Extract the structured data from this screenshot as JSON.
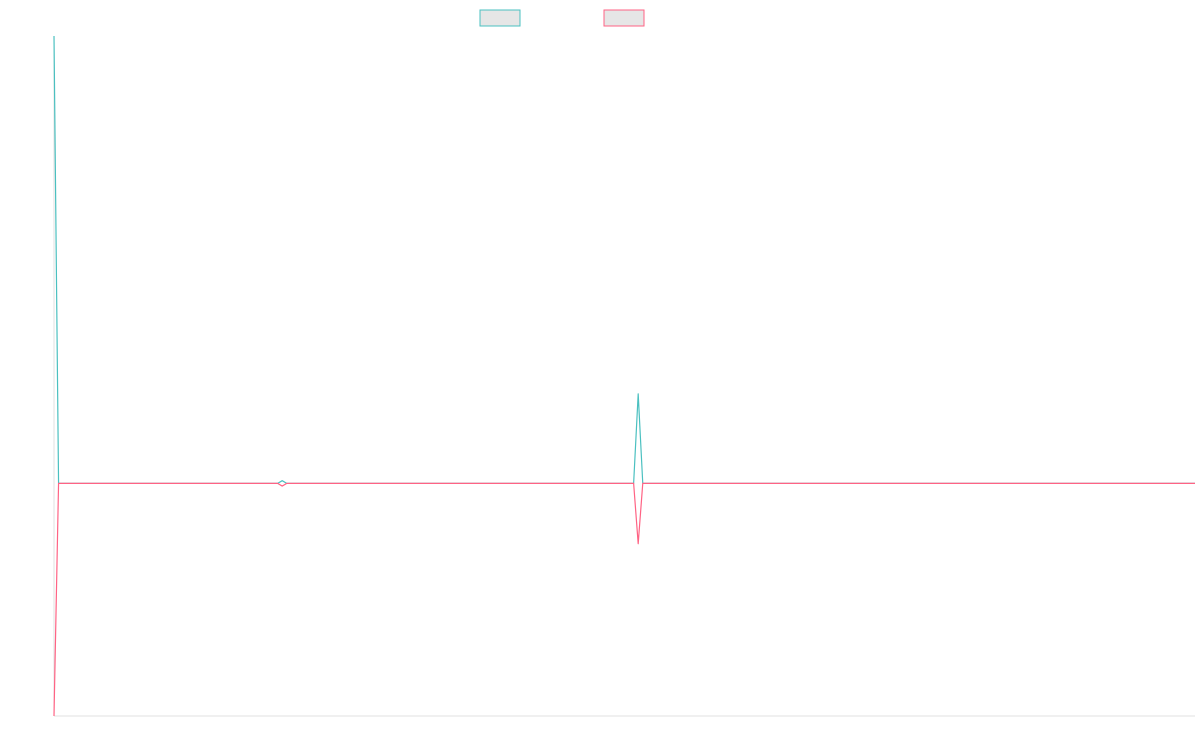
{
  "chart_data": {
    "type": "line",
    "title": "",
    "xlabel": "",
    "ylabel": "",
    "legend_placement": "top-center",
    "grid": false,
    "x": [
      0,
      1,
      2,
      3,
      4,
      5,
      6,
      7,
      8,
      9,
      10,
      11,
      12,
      13,
      14,
      15,
      16,
      17,
      18,
      19,
      20,
      21,
      22,
      23,
      24,
      25,
      26,
      27,
      28,
      29,
      30,
      31,
      32,
      33,
      34,
      35,
      36,
      37,
      38,
      39,
      40,
      41,
      42,
      43,
      44,
      45,
      46,
      47,
      48,
      49,
      50,
      51,
      52,
      53,
      54,
      55,
      56,
      57,
      58,
      59,
      60,
      61,
      62,
      63,
      64,
      65,
      66,
      67,
      68,
      69,
      70,
      71,
      72,
      73,
      74,
      75,
      76,
      77,
      78,
      79,
      80,
      81,
      82,
      83,
      84,
      85,
      86,
      87,
      88,
      89,
      90,
      91,
      92,
      93,
      94,
      95,
      96,
      97,
      98,
      99,
      100,
      101,
      102,
      103,
      104,
      105,
      106,
      107,
      108,
      109,
      110,
      111,
      112,
      113,
      114,
      115,
      116,
      117,
      118,
      119,
      120,
      121,
      122,
      123,
      124,
      125,
      126,
      127,
      128,
      129,
      130,
      131,
      132,
      133,
      134,
      135,
      136,
      137,
      138,
      139,
      140,
      141,
      142,
      143,
      144,
      145,
      146,
      147,
      148,
      149,
      150,
      151,
      152,
      153,
      154,
      155,
      156,
      157,
      158,
      159,
      160,
      161,
      162,
      163,
      164,
      165,
      166,
      167,
      168,
      169,
      170,
      171,
      172,
      173,
      174,
      175,
      176,
      177,
      178,
      179,
      180,
      181,
      182,
      183,
      184,
      185,
      186,
      187,
      188,
      189,
      190,
      191,
      192,
      193,
      194,
      195,
      196,
      197,
      198,
      199,
      200,
      201,
      202,
      203,
      204,
      205,
      206,
      207,
      208,
      209,
      210,
      211,
      212,
      213,
      214,
      215,
      216,
      217,
      218,
      219,
      220,
      221,
      222,
      223,
      224,
      225,
      226,
      227,
      228,
      229,
      230,
      231,
      232,
      233,
      234,
      235,
      236,
      237,
      238,
      239,
      240,
      241,
      242,
      243,
      244,
      245,
      246,
      247,
      248,
      249,
      250
    ],
    "series": [
      {
        "name": "",
        "color": "#4bc0c0",
        "legend_fill": "#e6e6e6",
        "baseline": 0,
        "spikes": [
          [
            0,
            100
          ],
          [
            1,
            0
          ],
          [
            50,
            0.6
          ],
          [
            128,
            20
          ]
        ]
      },
      {
        "name": "",
        "color": "#ff6384",
        "legend_fill": "#e6e6e6",
        "baseline": 0,
        "spikes": [
          [
            0,
            -52
          ],
          [
            1,
            0
          ],
          [
            50,
            -0.6
          ],
          [
            128,
            -13.5
          ]
        ]
      }
    ],
    "ylim": [
      -52,
      100
    ],
    "xlim": [
      0,
      250
    ]
  }
}
